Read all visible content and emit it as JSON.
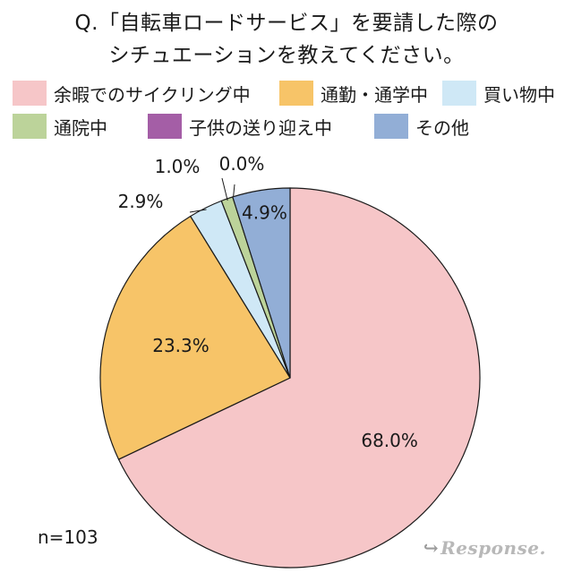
{
  "title": {
    "line1": "Q.「自転車ロードサービス」を要請した際の",
    "line2": "シチュエーションを教えてください。"
  },
  "chart_data": {
    "type": "pie",
    "start": "12 o'clock",
    "direction": "clockwise",
    "legend_position": "top",
    "slices": [
      {
        "name": "余暇でのサイクリング中",
        "value": 68.0,
        "label": "68.0%",
        "color": "#f6c6c8"
      },
      {
        "name": "通勤・通学中",
        "value": 23.3,
        "label": "23.3%",
        "color": "#f7c468"
      },
      {
        "name": "買い物中",
        "value": 2.9,
        "label": "2.9%",
        "color": "#cfe8f6"
      },
      {
        "name": "通院中",
        "value": 1.0,
        "label": "1.0%",
        "color": "#bcd39a"
      },
      {
        "name": "子供の送り迎え中",
        "value": 0.0,
        "label": "0.0%",
        "color": "#a45ea6"
      },
      {
        "name": "その他",
        "value": 4.9,
        "label": "4.9%",
        "color": "#92aed6"
      }
    ]
  },
  "note": "n=103",
  "watermark": "Response."
}
